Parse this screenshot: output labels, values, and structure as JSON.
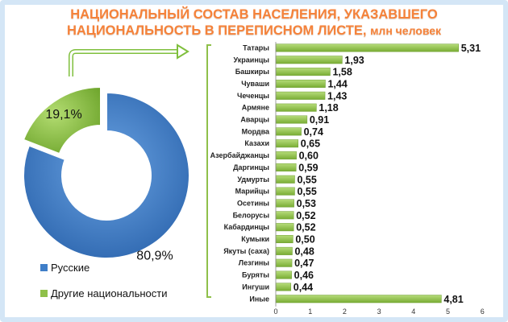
{
  "title": {
    "line1": "НАЦИОНАЛЬНЫЙ СОСТАВ НАСЕЛЕНИЯ, УКАЗАВШЕГО",
    "line2": "НАЦИОНАЛЬНОСТЬ В ПЕРЕПИСНОМ ЛИСТЕ,",
    "unit": "млн человек"
  },
  "colors": {
    "accent": "#f5823a",
    "bar": "#8fc04a",
    "russians": "#3f7ec8",
    "others": "#8fc04a",
    "frame": "#d4e6f6"
  },
  "chart_data": [
    {
      "type": "pie",
      "subtype": "donut",
      "title": "",
      "labels": [
        "Русские",
        "Другие национальности"
      ],
      "values": [
        80.9,
        19.1
      ],
      "value_labels": [
        "80,9%",
        "19,1%"
      ],
      "legend_position": "bottom-left"
    },
    {
      "type": "bar",
      "orientation": "horizontal",
      "title": "",
      "xlabel": "",
      "ylabel": "",
      "categories": [
        "Татары",
        "Украинцы",
        "Башкиры",
        "Чуваши",
        "Чеченцы",
        "Армяне",
        "Аварцы",
        "Мордва",
        "Казахи",
        "Азербайджанцы",
        "Даргинцы",
        "Удмурты",
        "Марийцы",
        "Осетины",
        "Белорусы",
        "Кабардинцы",
        "Кумыки",
        "Якуты (саха)",
        "Лезгины",
        "Буряты",
        "Ингуши",
        "Иные"
      ],
      "values": [
        5.31,
        1.93,
        1.58,
        1.44,
        1.43,
        1.18,
        0.91,
        0.74,
        0.65,
        0.6,
        0.59,
        0.55,
        0.55,
        0.53,
        0.52,
        0.52,
        0.5,
        0.48,
        0.47,
        0.46,
        0.44,
        4.81
      ],
      "value_labels": [
        "5,31",
        "1,93",
        "1,58",
        "1,44",
        "1,43",
        "1,18",
        "0,91",
        "0,74",
        "0,65",
        "0,60",
        "0,59",
        "0,55",
        "0,55",
        "0,53",
        "0,52",
        "0,52",
        "0,50",
        "0,48",
        "0,47",
        "0,46",
        "0,44",
        "4,81"
      ],
      "xlim": [
        0,
        6
      ],
      "ticks": [
        "0",
        "1",
        "2",
        "3",
        "4",
        "5",
        "6"
      ],
      "grid": false
    }
  ]
}
